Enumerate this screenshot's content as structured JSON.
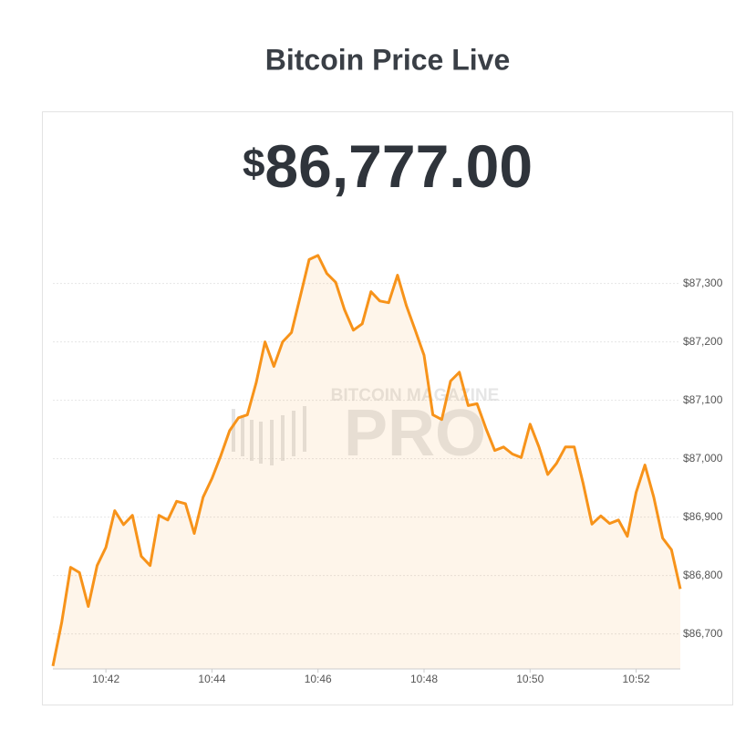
{
  "chart_data": {
    "type": "area",
    "title": "Bitcoin Price Live",
    "currency_symbol": "$",
    "current_price": "86,777.00",
    "watermark": {
      "top": "BITCOIN MAGAZINE",
      "main": "PRO"
    },
    "color": "#f7931a",
    "grid": true,
    "x": [
      "10:41:00",
      "10:41:10",
      "10:41:20",
      "10:41:30",
      "10:41:40",
      "10:41:50",
      "10:42:00",
      "10:42:10",
      "10:42:20",
      "10:42:30",
      "10:42:40",
      "10:42:50",
      "10:43:00",
      "10:43:10",
      "10:43:20",
      "10:43:30",
      "10:43:40",
      "10:43:50",
      "10:44:00",
      "10:44:10",
      "10:44:20",
      "10:44:30",
      "10:44:40",
      "10:44:50",
      "10:45:00",
      "10:45:10",
      "10:45:20",
      "10:45:30",
      "10:45:40",
      "10:45:50",
      "10:46:00",
      "10:46:10",
      "10:46:20",
      "10:46:30",
      "10:46:40",
      "10:46:50",
      "10:47:00",
      "10:47:10",
      "10:47:20",
      "10:47:30",
      "10:47:40",
      "10:47:50",
      "10:48:00",
      "10:48:10",
      "10:48:20",
      "10:48:30",
      "10:48:40",
      "10:48:50",
      "10:49:00",
      "10:49:10",
      "10:49:20",
      "10:49:30",
      "10:49:40",
      "10:49:50",
      "10:50:00",
      "10:50:10",
      "10:50:20",
      "10:50:30",
      "10:50:40",
      "10:50:50",
      "10:51:00",
      "10:51:10",
      "10:51:20",
      "10:51:30",
      "10:51:40",
      "10:51:50",
      "10:52:00",
      "10:52:10",
      "10:52:20",
      "10:52:30",
      "10:52:40",
      "10:52:50"
    ],
    "values": [
      86645,
      86720,
      86814,
      86805,
      86747,
      86817,
      86848,
      86911,
      86887,
      86903,
      86833,
      86817,
      86903,
      86895,
      86927,
      86923,
      86872,
      86934,
      86966,
      87005,
      87048,
      87070,
      87075,
      87130,
      87200,
      87158,
      87200,
      87216,
      87278,
      87341,
      87348,
      87317,
      87302,
      87255,
      87220,
      87231,
      87286,
      87270,
      87267,
      87314,
      87262,
      87220,
      87177,
      87075,
      87067,
      87133,
      87148,
      87091,
      87094,
      87052,
      87014,
      87020,
      87008,
      87002,
      87059,
      87020,
      86973,
      86992,
      87020,
      87020,
      86958,
      86888,
      86902,
      86889,
      86895,
      86867,
      86942,
      86989,
      86934,
      86864,
      86844,
      86777
    ],
    "xlim": [
      "10:41:00",
      "10:52:50"
    ],
    "xticks": [
      "10:42",
      "10:44",
      "10:46",
      "10:48",
      "10:50",
      "10:52"
    ],
    "ylim": [
      86640,
      87390
    ],
    "yticks": [
      {
        "value": 86700,
        "label": "$86,700"
      },
      {
        "value": 86800,
        "label": "$86,800"
      },
      {
        "value": 86900,
        "label": "$86,900"
      },
      {
        "value": 87000,
        "label": "$87,000"
      },
      {
        "value": 87100,
        "label": "$87,100"
      },
      {
        "value": 87200,
        "label": "$87,200"
      },
      {
        "value": 87300,
        "label": "$87,300"
      }
    ]
  }
}
